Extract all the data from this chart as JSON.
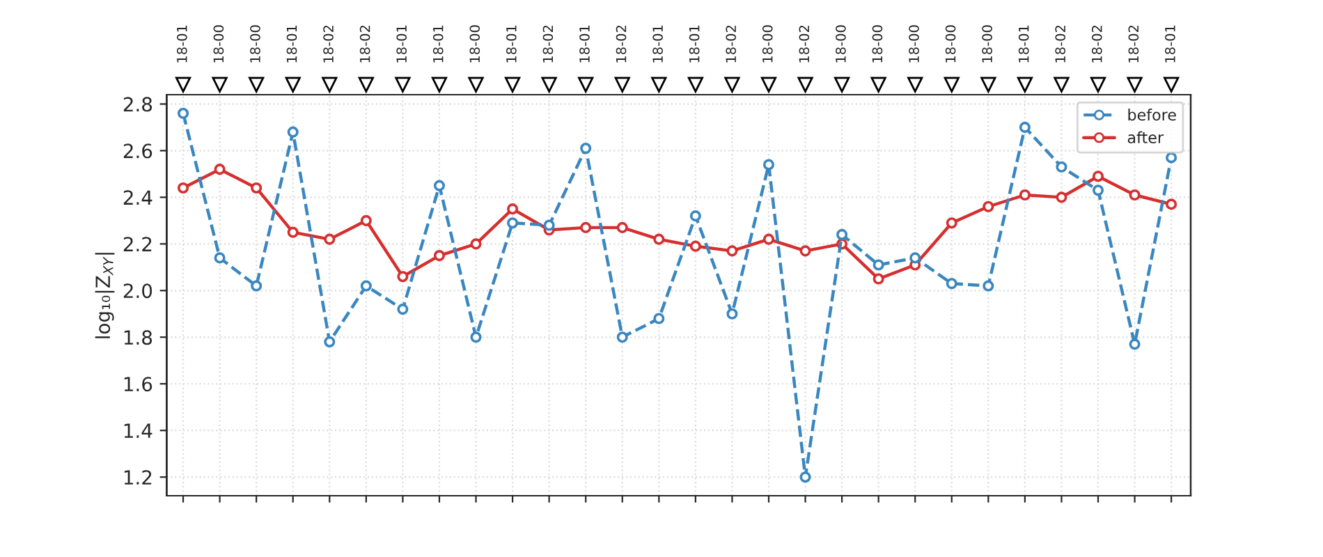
{
  "chart_data": {
    "type": "line",
    "ylabel": "log₁₀|Z$_{XY}$|",
    "categories": [
      "18-01",
      "18-00",
      "18-00",
      "18-01",
      "18-02",
      "18-02",
      "18-01",
      "18-01",
      "18-00",
      "18-01",
      "18-02",
      "18-01",
      "18-02",
      "18-01",
      "18-01",
      "18-02",
      "18-00",
      "18-02",
      "18-00",
      "18-00",
      "18-00",
      "18-00",
      "18-00",
      "18-01",
      "18-02",
      "18-02",
      "18-02",
      "18-01"
    ],
    "series": [
      {
        "name": "before",
        "color": "#3a87c0",
        "line_style": "dashed",
        "values": [
          2.76,
          2.14,
          2.02,
          2.68,
          1.78,
          2.02,
          1.92,
          2.45,
          1.8,
          2.29,
          2.28,
          2.61,
          1.8,
          1.88,
          2.32,
          1.9,
          2.54,
          1.2,
          2.24,
          2.11,
          2.14,
          2.03,
          2.02,
          2.7,
          2.53,
          2.43,
          1.77,
          2.57
        ]
      },
      {
        "name": "after",
        "color": "#d62f2f",
        "line_style": "solid",
        "values": [
          2.44,
          2.52,
          2.44,
          2.25,
          2.22,
          2.3,
          2.06,
          2.15,
          2.2,
          2.35,
          2.26,
          2.27,
          2.27,
          2.22,
          2.19,
          2.17,
          2.22,
          2.17,
          2.2,
          2.05,
          2.11,
          2.29,
          2.36,
          2.41,
          2.4,
          2.49,
          2.41,
          2.37
        ]
      }
    ],
    "ylim": [
      1.12,
      2.84
    ],
    "yticks": [
      {
        "value": 1.2,
        "label": "1.2"
      },
      {
        "value": 1.4,
        "label": "1.4"
      },
      {
        "value": 1.6,
        "label": "1.6"
      },
      {
        "value": 1.8,
        "label": "1.8"
      },
      {
        "value": 2.0,
        "label": "2.0"
      },
      {
        "value": 2.2,
        "label": "2.2"
      },
      {
        "value": 2.4,
        "label": "2.4"
      },
      {
        "value": 2.6,
        "label": "2.6"
      },
      {
        "value": 2.8,
        "label": "2.8"
      }
    ],
    "grid": true,
    "legend": "top right",
    "marker": "circle"
  }
}
